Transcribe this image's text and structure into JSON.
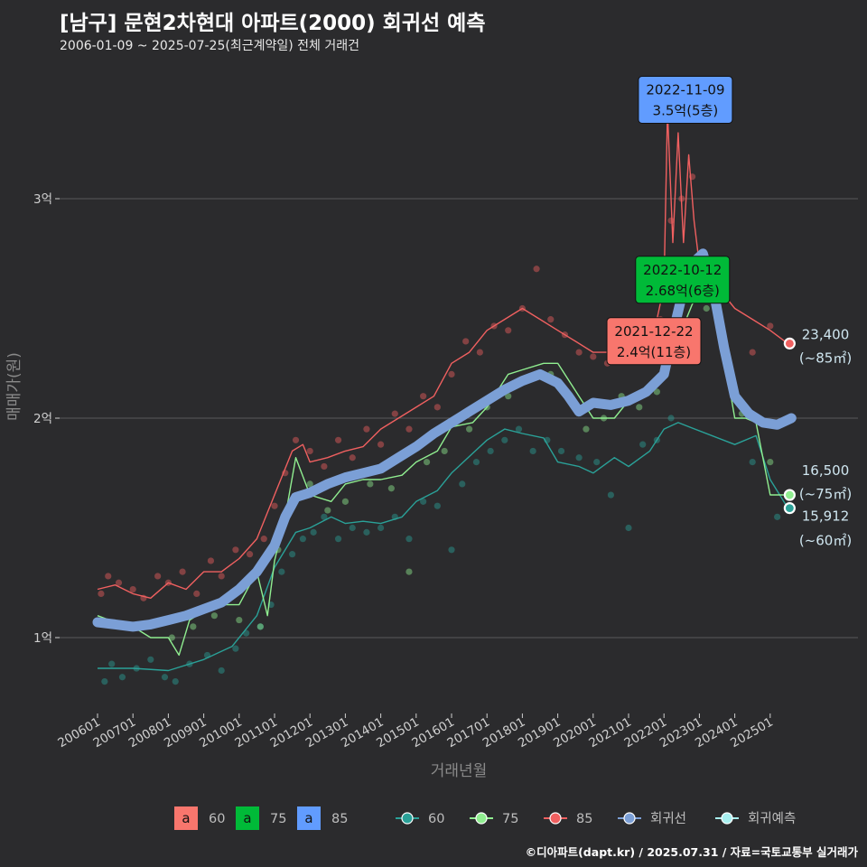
{
  "header": {
    "title": "[남구] 문현2차현대 아파트(2000) 회귀선 예측",
    "subtitle": "2006-01-09 ~ 2025-07-25(최근계약일) 전체 거래건"
  },
  "credit": "©디아파트(dapt.kr) / 2025.07.31 / 자료=국토교통부 실거래가",
  "colors": {
    "background": "#2b2b2d",
    "grid": "#5a5a5a",
    "s60": "#2aa198",
    "s75": "#90ee90",
    "s85": "#f06060",
    "regression": "#7b9fd6",
    "forecast": "#a8f0f0",
    "label60": "#f8766d",
    "label75": "#00ba38",
    "label85": "#619cff"
  },
  "chart_data": {
    "type": "line",
    "xlabel": "거래년월",
    "ylabel": "매매가(원)",
    "xlim": [
      2006.0,
      2025.9
    ],
    "ylim": [
      0.78,
      3.6
    ],
    "y_ticks": [
      1,
      2,
      3
    ],
    "y_tick_labels": [
      "1억",
      "2억",
      "3억"
    ],
    "x_ticks": [
      2006,
      2007,
      2008,
      2009,
      2010,
      2011,
      2012,
      2013,
      2014,
      2015,
      2016,
      2017,
      2018,
      2019,
      2020,
      2021,
      2022,
      2023,
      2024,
      2025
    ],
    "x_tick_labels": [
      "200601",
      "200701",
      "200801",
      "200901",
      "201001",
      "201101",
      "201201",
      "201301",
      "201401",
      "201501",
      "201601",
      "201701",
      "201801",
      "201901",
      "202001",
      "202101",
      "202201",
      "202301",
      "202401",
      "202501"
    ],
    "grid": true,
    "series": [
      {
        "name": "60",
        "key": "s60",
        "unit": "억",
        "x": [
          2006.0,
          2007.0,
          2008.0,
          2009.0,
          2009.8,
          2010.5,
          2011.0,
          2011.6,
          2012.0,
          2012.6,
          2013.0,
          2013.5,
          2014.0,
          2014.6,
          2015.0,
          2015.6,
          2016.0,
          2016.6,
          2017.0,
          2017.5,
          2018.0,
          2018.6,
          2019.0,
          2019.6,
          2020.0,
          2020.6,
          2021.0,
          2021.6,
          2022.0,
          2022.4,
          2024.0,
          2024.6,
          2025.0,
          2025.5
        ],
        "y": [
          0.86,
          0.86,
          0.85,
          0.9,
          0.96,
          1.1,
          1.32,
          1.48,
          1.5,
          1.55,
          1.52,
          1.53,
          1.52,
          1.55,
          1.62,
          1.67,
          1.75,
          1.84,
          1.9,
          1.95,
          1.93,
          1.91,
          1.8,
          1.78,
          1.75,
          1.82,
          1.78,
          1.85,
          1.95,
          1.98,
          1.88,
          1.92,
          1.72,
          1.59
        ]
      },
      {
        "name": "75",
        "key": "s75",
        "unit": "억",
        "x": [
          2006.0,
          2006.5,
          2007.0,
          2007.5,
          2008.0,
          2008.3,
          2008.6,
          2009.0,
          2009.6,
          2010.0,
          2010.5,
          2010.8,
          2011.0,
          2011.3,
          2011.6,
          2012.0,
          2012.6,
          2013.0,
          2013.5,
          2014.0,
          2014.6,
          2015.0,
          2015.6,
          2016.0,
          2016.6,
          2017.0,
          2017.6,
          2018.0,
          2018.6,
          2019.0,
          2019.6,
          2020.0,
          2020.6,
          2021.0,
          2021.5,
          2022.0,
          2022.5,
          2022.8,
          2023.0,
          2023.3,
          2024.0,
          2024.3,
          2024.6,
          2025.0,
          2025.3,
          2025.55
        ],
        "y": [
          1.1,
          1.07,
          1.05,
          1.0,
          1.0,
          0.92,
          1.08,
          1.12,
          1.15,
          1.15,
          1.3,
          1.1,
          1.35,
          1.55,
          1.82,
          1.65,
          1.62,
          1.7,
          1.72,
          1.72,
          1.74,
          1.8,
          1.85,
          1.96,
          1.98,
          2.05,
          2.2,
          2.22,
          2.25,
          2.25,
          2.1,
          2.0,
          2.0,
          2.08,
          2.12,
          2.2,
          2.4,
          2.52,
          2.55,
          2.65,
          2.0,
          2.0,
          1.98,
          1.65,
          1.65,
          1.65
        ]
      },
      {
        "name": "85",
        "key": "s85",
        "unit": "억",
        "x": [
          2006.0,
          2006.5,
          2007.0,
          2007.5,
          2008.0,
          2008.5,
          2009.0,
          2009.5,
          2010.0,
          2010.5,
          2011.0,
          2011.5,
          2011.8,
          2012.0,
          2012.5,
          2013.0,
          2013.5,
          2014.0,
          2014.5,
          2015.0,
          2015.5,
          2016.0,
          2016.5,
          2017.0,
          2017.5,
          2018.0,
          2018.5,
          2019.0,
          2019.5,
          2020.0,
          2020.5,
          2021.0,
          2021.5,
          2021.8,
          2022.0,
          2022.1,
          2022.25,
          2022.4,
          2022.55,
          2022.7,
          2022.85,
          2023.0,
          2023.2,
          2023.5,
          2024.0,
          2024.5,
          2025.0,
          2025.5
        ],
        "y": [
          1.22,
          1.24,
          1.2,
          1.18,
          1.25,
          1.22,
          1.3,
          1.3,
          1.36,
          1.45,
          1.65,
          1.85,
          1.88,
          1.8,
          1.82,
          1.85,
          1.87,
          1.95,
          2.0,
          2.05,
          2.1,
          2.25,
          2.3,
          2.4,
          2.45,
          2.5,
          2.45,
          2.4,
          2.35,
          2.3,
          2.3,
          2.35,
          2.4,
          2.45,
          2.6,
          3.4,
          2.8,
          3.3,
          2.8,
          3.2,
          2.9,
          2.7,
          2.6,
          2.6,
          2.5,
          2.45,
          2.4,
          2.34
        ]
      },
      {
        "name": "회귀선",
        "key": "regression",
        "unit": "억",
        "x": [
          2006.0,
          2006.5,
          2007.0,
          2007.5,
          2008.0,
          2008.5,
          2009.0,
          2009.5,
          2010.0,
          2010.5,
          2011.0,
          2011.3,
          2011.6,
          2012.0,
          2012.5,
          2013.0,
          2013.5,
          2014.0,
          2014.5,
          2015.0,
          2015.5,
          2016.0,
          2016.5,
          2017.0,
          2017.5,
          2018.0,
          2018.5,
          2019.0,
          2019.3,
          2019.6,
          2020.0,
          2020.5,
          2021.0,
          2021.5,
          2022.0,
          2022.3,
          2022.6,
          2022.9,
          2023.1,
          2023.4,
          2023.7,
          2024.0,
          2024.4,
          2024.8,
          2025.2,
          2025.6
        ],
        "y": [
          1.07,
          1.06,
          1.05,
          1.06,
          1.08,
          1.1,
          1.13,
          1.16,
          1.22,
          1.3,
          1.42,
          1.55,
          1.64,
          1.66,
          1.7,
          1.73,
          1.75,
          1.77,
          1.82,
          1.87,
          1.93,
          1.98,
          2.03,
          2.08,
          2.13,
          2.17,
          2.2,
          2.16,
          2.1,
          2.03,
          2.07,
          2.06,
          2.08,
          2.12,
          2.2,
          2.42,
          2.62,
          2.72,
          2.75,
          2.58,
          2.32,
          2.1,
          2.02,
          1.98,
          1.97,
          2.0
        ]
      }
    ],
    "scatter_points": {
      "s60": [
        [
          2006.2,
          0.8
        ],
        [
          2006.4,
          0.88
        ],
        [
          2006.7,
          0.82
        ],
        [
          2007.1,
          0.86
        ],
        [
          2007.5,
          0.9
        ],
        [
          2007.9,
          0.82
        ],
        [
          2008.2,
          0.8
        ],
        [
          2008.6,
          0.88
        ],
        [
          2009.1,
          0.92
        ],
        [
          2009.5,
          0.85
        ],
        [
          2009.9,
          0.95
        ],
        [
          2010.2,
          1.02
        ],
        [
          2010.6,
          1.05
        ],
        [
          2010.9,
          1.15
        ],
        [
          2011.2,
          1.3
        ],
        [
          2011.5,
          1.38
        ],
        [
          2011.8,
          1.45
        ],
        [
          2012.1,
          1.48
        ],
        [
          2012.4,
          1.55
        ],
        [
          2012.8,
          1.45
        ],
        [
          2013.2,
          1.5
        ],
        [
          2013.6,
          1.48
        ],
        [
          2014.0,
          1.5
        ],
        [
          2014.4,
          1.55
        ],
        [
          2014.8,
          1.45
        ],
        [
          2015.2,
          1.62
        ],
        [
          2015.6,
          1.6
        ],
        [
          2016.0,
          1.4
        ],
        [
          2016.3,
          1.7
        ],
        [
          2016.7,
          1.8
        ],
        [
          2017.1,
          1.85
        ],
        [
          2017.5,
          1.9
        ],
        [
          2017.9,
          1.95
        ],
        [
          2018.3,
          1.85
        ],
        [
          2018.7,
          1.9
        ],
        [
          2019.1,
          1.85
        ],
        [
          2019.6,
          1.82
        ],
        [
          2020.1,
          1.8
        ],
        [
          2020.5,
          1.65
        ],
        [
          2021.0,
          1.5
        ],
        [
          2021.4,
          1.88
        ],
        [
          2021.8,
          1.9
        ],
        [
          2022.2,
          2.0
        ],
        [
          2024.5,
          1.8
        ],
        [
          2025.2,
          1.55
        ]
      ],
      "s75": [
        [
          2006.3,
          1.07
        ],
        [
          2007.2,
          1.05
        ],
        [
          2008.1,
          1.0
        ],
        [
          2008.7,
          1.05
        ],
        [
          2009.3,
          1.1
        ],
        [
          2010.0,
          1.08
        ],
        [
          2010.6,
          1.05
        ],
        [
          2011.1,
          1.4
        ],
        [
          2011.5,
          1.6
        ],
        [
          2012.0,
          1.7
        ],
        [
          2012.5,
          1.58
        ],
        [
          2013.0,
          1.62
        ],
        [
          2013.7,
          1.7
        ],
        [
          2014.3,
          1.68
        ],
        [
          2014.8,
          1.3
        ],
        [
          2015.3,
          1.8
        ],
        [
          2015.8,
          1.85
        ],
        [
          2016.5,
          1.95
        ],
        [
          2017.0,
          2.05
        ],
        [
          2017.6,
          2.1
        ],
        [
          2018.2,
          2.18
        ],
        [
          2018.8,
          2.2
        ],
        [
          2019.3,
          2.1
        ],
        [
          2019.8,
          1.95
        ],
        [
          2020.3,
          2.0
        ],
        [
          2020.8,
          2.1
        ],
        [
          2021.3,
          2.05
        ],
        [
          2021.8,
          2.12
        ],
        [
          2022.6,
          2.4
        ],
        [
          2023.2,
          2.5
        ],
        [
          2024.2,
          2.02
        ],
        [
          2025.0,
          1.8
        ]
      ],
      "s85": [
        [
          2006.1,
          1.2
        ],
        [
          2006.3,
          1.28
        ],
        [
          2006.6,
          1.25
        ],
        [
          2007.0,
          1.22
        ],
        [
          2007.3,
          1.18
        ],
        [
          2007.7,
          1.28
        ],
        [
          2008.0,
          1.25
        ],
        [
          2008.4,
          1.3
        ],
        [
          2008.8,
          1.2
        ],
        [
          2009.2,
          1.35
        ],
        [
          2009.5,
          1.28
        ],
        [
          2009.9,
          1.4
        ],
        [
          2010.3,
          1.38
        ],
        [
          2010.7,
          1.45
        ],
        [
          2011.0,
          1.6
        ],
        [
          2011.3,
          1.75
        ],
        [
          2011.6,
          1.9
        ],
        [
          2012.0,
          1.85
        ],
        [
          2012.4,
          1.78
        ],
        [
          2012.8,
          1.9
        ],
        [
          2013.2,
          1.82
        ],
        [
          2013.6,
          1.95
        ],
        [
          2014.0,
          1.88
        ],
        [
          2014.4,
          2.02
        ],
        [
          2014.8,
          1.95
        ],
        [
          2015.2,
          2.1
        ],
        [
          2015.6,
          2.05
        ],
        [
          2016.0,
          2.2
        ],
        [
          2016.4,
          2.35
        ],
        [
          2016.8,
          2.3
        ],
        [
          2017.2,
          2.42
        ],
        [
          2017.6,
          2.4
        ],
        [
          2018.0,
          2.5
        ],
        [
          2018.4,
          2.68
        ],
        [
          2018.8,
          2.45
        ],
        [
          2019.2,
          2.38
        ],
        [
          2019.6,
          2.3
        ],
        [
          2020.0,
          2.28
        ],
        [
          2020.4,
          2.25
        ],
        [
          2020.8,
          2.35
        ],
        [
          2021.2,
          2.3
        ],
        [
          2021.6,
          2.4
        ],
        [
          2021.9,
          2.45
        ],
        [
          2022.2,
          2.9
        ],
        [
          2022.5,
          3.0
        ],
        [
          2022.8,
          3.1
        ],
        [
          2023.0,
          3.5
        ],
        [
          2023.3,
          2.7
        ],
        [
          2023.7,
          2.6
        ],
        [
          2024.5,
          2.3
        ],
        [
          2025.0,
          2.42
        ]
      ]
    },
    "callouts": [
      {
        "date": "2022-11-09",
        "value": "3.5억(5층)",
        "color_key": "label85",
        "x": 2022.86,
        "y": 3.5
      },
      {
        "date": "2022-10-12",
        "value": "2.68억(6층)",
        "color_key": "label75",
        "x": 2022.78,
        "y": 2.68
      },
      {
        "date": "2021-12-22",
        "value": "2.4억(11층)",
        "color_key": "label60",
        "x": 2021.97,
        "y": 2.4
      }
    ],
    "end_labels": [
      {
        "value": "23,400",
        "area": "(~85㎡)",
        "color_key": "s85",
        "x": 2025.55,
        "y": 2.34
      },
      {
        "value": "16,500",
        "area": "(~75㎡)",
        "color_key": "s75",
        "x": 2025.55,
        "y": 1.65
      },
      {
        "value": "15,912",
        "area": "(~60㎡)",
        "color_key": "s60",
        "x": 2025.55,
        "y": 1.59
      }
    ],
    "legend": {
      "placement": "bottom",
      "label_boxes": [
        {
          "text": "a",
          "name": "60",
          "color_key": "label60"
        },
        {
          "text": "a",
          "name": "75",
          "color_key": "label75"
        },
        {
          "text": "a",
          "name": "85",
          "color_key": "label85"
        }
      ],
      "line_items": [
        {
          "name": "60",
          "color_key": "s60"
        },
        {
          "name": "75",
          "color_key": "s75"
        },
        {
          "name": "85",
          "color_key": "s85"
        },
        {
          "name": "회귀선",
          "color_key": "regression"
        },
        {
          "name": "회귀예측",
          "color_key": "forecast"
        }
      ]
    }
  }
}
